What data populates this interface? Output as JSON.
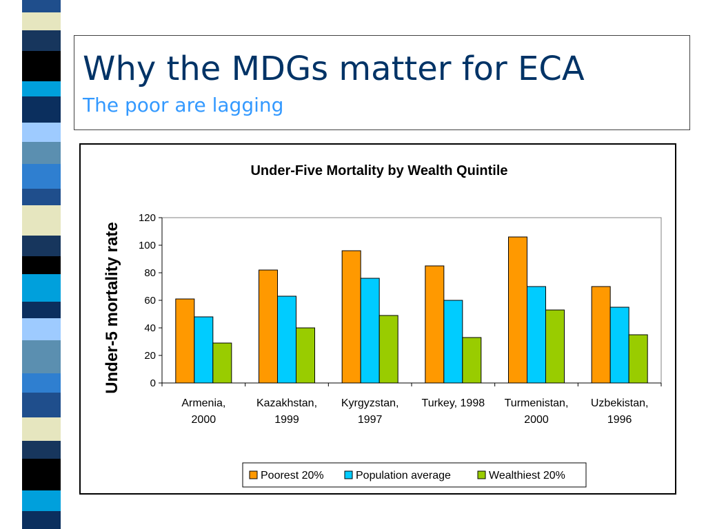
{
  "slide": {
    "title": "Why the MDGs matter for ECA",
    "subtitle": "The poor are lagging"
  },
  "colors": {
    "title": "#003366",
    "subtitle": "#3399ff",
    "poorest": "#ff9900",
    "average": "#00ccff",
    "wealthiest": "#99cc00"
  },
  "chart_data": {
    "type": "bar",
    "title": "Under-Five Mortality by Wealth Quintile",
    "xlabel": "",
    "ylabel": "Under-5 mortality rate",
    "ylim": [
      0,
      120
    ],
    "yticks": [
      0,
      20,
      40,
      60,
      80,
      100,
      120
    ],
    "grid": false,
    "legend": "bottom",
    "categories": [
      [
        "Armenia,",
        "2000"
      ],
      [
        "Kazakhstan,",
        "1999"
      ],
      [
        "Kyrgyzstan,",
        "1997"
      ],
      [
        "Turkey, 1998"
      ],
      [
        "Turmenistan,",
        "2000"
      ],
      [
        "Uzbekistan,",
        "1996"
      ]
    ],
    "series": [
      {
        "name": "Poorest 20%",
        "color": "#ff9900",
        "values": [
          61,
          82,
          96,
          85,
          106,
          70
        ]
      },
      {
        "name": "Population average",
        "color": "#00ccff",
        "values": [
          48,
          63,
          76,
          60,
          70,
          55
        ]
      },
      {
        "name": "Wealthiest 20%",
        "color": "#99cc00",
        "values": [
          29,
          40,
          49,
          33,
          53,
          35
        ]
      }
    ]
  }
}
